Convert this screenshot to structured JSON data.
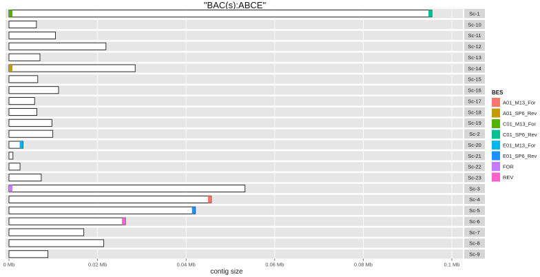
{
  "chart_data": {
    "type": "bar",
    "title": "\"BAC(s):ABCE\"",
    "xlabel": "contig size",
    "ylabel": "",
    "xlim": [
      0,
      0.1
    ],
    "x_ticks": [
      "0 Mb",
      "0.02 Mb",
      "0.04 Mb",
      "0.06 Mb",
      "0.08 Mb",
      "0.1 Mb"
    ],
    "x_tick_values": [
      0,
      0.02,
      0.04,
      0.06,
      0.08,
      0.1
    ],
    "grid": true,
    "legend_position": "right",
    "legend_title": "BES",
    "legend": [
      {
        "name": "A01_M13_For",
        "color": "#F8766D"
      },
      {
        "name": "A01_SP6_Rev",
        "color": "#C49A00"
      },
      {
        "name": "C01_M13_For",
        "color": "#53B400"
      },
      {
        "name": "C01_SP6_Rev",
        "color": "#00C094"
      },
      {
        "name": "E01_M13_For",
        "color": "#00B6EB"
      },
      {
        "name": "E01_SP6_Rev",
        "color": "#1E90FF"
      },
      {
        "name": "FOR",
        "color": "#C77CFF"
      },
      {
        "name": "REV",
        "color": "#FF61CC"
      }
    ],
    "contigs": [
      {
        "name": "Sc-1",
        "size": 0.0955
      },
      {
        "name": "Sc-10",
        "size": 0.0062
      },
      {
        "name": "Sc-11",
        "size": 0.0105
      },
      {
        "name": "Sc-12",
        "size": 0.0219
      },
      {
        "name": "Sc-13",
        "size": 0.007
      },
      {
        "name": "Sc-14",
        "size": 0.0285
      },
      {
        "name": "Sc-15",
        "size": 0.0065
      },
      {
        "name": "Sc-16",
        "size": 0.0112
      },
      {
        "name": "Sc-17",
        "size": 0.0058
      },
      {
        "name": "Sc-18",
        "size": 0.0063
      },
      {
        "name": "Sc-19",
        "size": 0.0097
      },
      {
        "name": "Sc-2",
        "size": 0.0099
      },
      {
        "name": "Sc-20",
        "size": 0.0032
      },
      {
        "name": "Sc-21",
        "size": 0.0009
      },
      {
        "name": "Sc-22",
        "size": 0.0025
      },
      {
        "name": "Sc-23",
        "size": 0.0073
      },
      {
        "name": "Sc-3",
        "size": 0.0533
      },
      {
        "name": "Sc-4",
        "size": 0.0457
      },
      {
        "name": "Sc-5",
        "size": 0.0421
      },
      {
        "name": "Sc-6",
        "size": 0.0263
      },
      {
        "name": "Sc-7",
        "size": 0.0169
      },
      {
        "name": "Sc-8",
        "size": 0.0214
      },
      {
        "name": "Sc-9",
        "size": 0.0088
      }
    ],
    "markers": [
      {
        "contig": "Sc-1",
        "bes": "C01_M13_For",
        "position": 0.0
      },
      {
        "contig": "Sc-1",
        "bes": "C01_SP6_Rev",
        "position": 0.0955
      },
      {
        "contig": "Sc-14",
        "bes": "A01_SP6_Rev",
        "position": 0.0
      },
      {
        "contig": "Sc-20",
        "bes": "E01_M13_For",
        "position": 0.0032
      },
      {
        "contig": "Sc-3",
        "bes": "FOR",
        "position": 0.0
      },
      {
        "contig": "Sc-4",
        "bes": "A01_M13_For",
        "position": 0.0457
      },
      {
        "contig": "Sc-5",
        "bes": "E01_SP6_Rev",
        "position": 0.0421
      },
      {
        "contig": "Sc-6",
        "bes": "REV",
        "position": 0.0263
      }
    ]
  }
}
